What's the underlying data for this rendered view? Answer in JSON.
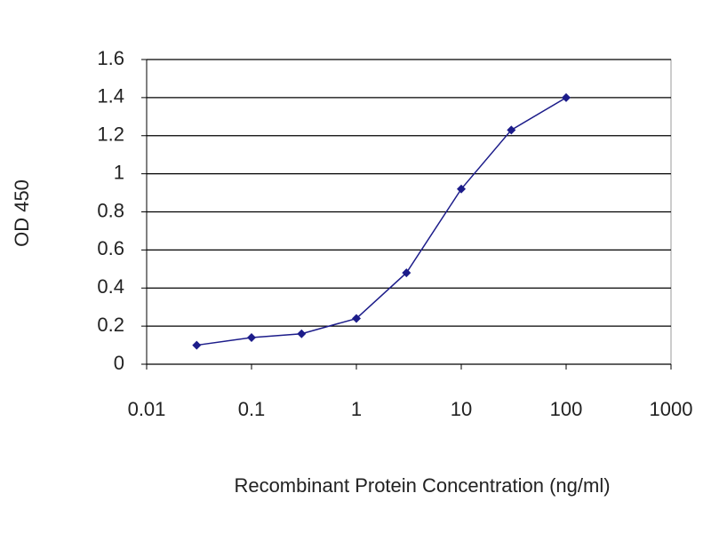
{
  "chart_data": {
    "type": "line",
    "xlabel": "Recombinant Protein Concentration (ng/ml)",
    "ylabel": "OD 450",
    "xscale": "log",
    "x": [
      0.03,
      0.1,
      0.3,
      1,
      3,
      10,
      30,
      100
    ],
    "series": [
      {
        "color": "#1c1c8a",
        "values": [
          0.1,
          0.14,
          0.16,
          0.24,
          0.48,
          0.92,
          1.23,
          1.4
        ]
      }
    ],
    "xlim": [
      0.01,
      1000
    ],
    "xticks": [
      0.01,
      0.1,
      1,
      10,
      100,
      1000
    ],
    "ylim": [
      0,
      1.6
    ],
    "yticks": [
      0,
      0.2,
      0.4,
      0.6,
      0.8,
      1,
      1.2,
      1.4,
      1.6
    ],
    "grid": true
  }
}
